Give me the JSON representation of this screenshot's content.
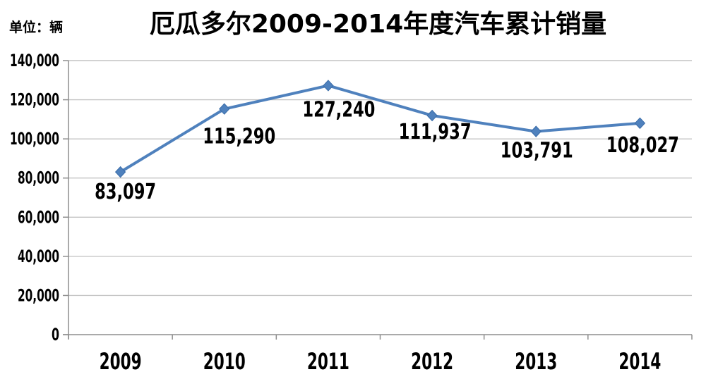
{
  "header": {
    "title": "厄瓜多尔2009-2014年度汽车累计销量",
    "unit_label": "单位：辆"
  },
  "chart_data": {
    "type": "line",
    "title": "厄瓜多尔2009-2014年度汽车累计销量",
    "unit": "单位：辆",
    "categories": [
      "2009",
      "2010",
      "2011",
      "2012",
      "2013",
      "2014"
    ],
    "values": [
      83097,
      115290,
      127240,
      111937,
      103791,
      108027
    ],
    "value_labels": [
      "83,097",
      "115,290",
      "127,240",
      "111,937",
      "103,791",
      "108,027"
    ],
    "y_tick_labels": [
      "0",
      "20,000",
      "40,000",
      "60,000",
      "80,000",
      "100,000",
      "120,000",
      "140,000"
    ],
    "ylim": [
      0,
      140000
    ],
    "y_step": 20000,
    "grid": true,
    "legend": "none",
    "marker": "diamond",
    "colors": {
      "line": "#4F81BD",
      "marker": "#4F81BD",
      "marker_edge": "#3A6CA8",
      "gridline": "#C4C4C4",
      "axis": "#8E8E8E",
      "text": "#000000",
      "background": "#FFFFFF"
    }
  }
}
